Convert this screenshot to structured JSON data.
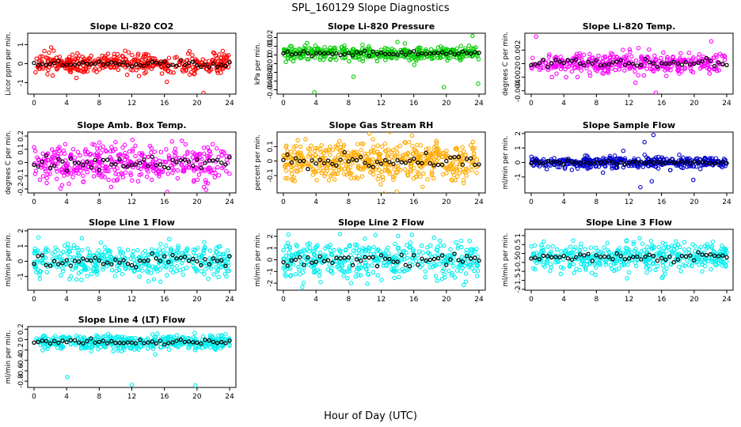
{
  "figure": {
    "title": "SPL_160129  Slope Diagnostics",
    "xlabel": "Hour of Day (UTC)"
  },
  "chart_data": [
    {
      "type": "scatter",
      "title": "Slope Li-820 CO2",
      "ylabel": "Licor ppm per min.",
      "color": "#ff0000",
      "xlim": [
        0,
        24
      ],
      "xticks": [
        0,
        4,
        8,
        12,
        16,
        20,
        24
      ],
      "ylim": [
        -1.6,
        1.6
      ],
      "yticks": [
        -1,
        0,
        1
      ],
      "series_center": 0,
      "series_spread": 0.25,
      "n_points": 420,
      "outliers": [
        {
          "x": 20.8,
          "y": -1.55
        },
        {
          "x": 2.1,
          "y": 0.85
        },
        {
          "x": 16.3,
          "y": -0.95
        },
        {
          "x": 5.2,
          "y": -0.75
        }
      ]
    },
    {
      "type": "scatter",
      "title": "Slope Li-820 Pressure",
      "ylabel": "kPa per min.",
      "color": "#00cc00",
      "xlim": [
        0,
        24
      ],
      "xticks": [
        0,
        4,
        8,
        12,
        16,
        20,
        24
      ],
      "ylim": [
        -0.045,
        0.025
      ],
      "yticks": [
        -0.04,
        -0.03,
        -0.02,
        -0.01,
        0,
        0.01,
        0.02
      ],
      "series_center": 0.002,
      "series_spread": 0.004,
      "n_points": 420,
      "outliers": [
        {
          "x": 3.8,
          "y": -0.043
        },
        {
          "x": 23.9,
          "y": -0.033
        },
        {
          "x": 19.7,
          "y": -0.037
        },
        {
          "x": 8.6,
          "y": -0.025
        },
        {
          "x": 23.2,
          "y": 0.022
        },
        {
          "x": 0.3,
          "y": -0.008
        }
      ]
    },
    {
      "type": "scatter",
      "title": "Slope Li-820 Temp.",
      "ylabel": "degrees C per min.",
      "color": "#ff00ff",
      "xlim": [
        0,
        24
      ],
      "xticks": [
        0,
        4,
        8,
        12,
        16,
        20,
        24
      ],
      "ylim": [
        -0.0045,
        0.0045
      ],
      "yticks": [
        -0.004,
        -0.002,
        0,
        0.002
      ],
      "series_center": 0,
      "series_spread": 0.0008,
      "n_points": 380,
      "outliers": [
        {
          "x": 15.3,
          "y": -0.0043
        },
        {
          "x": 0.6,
          "y": 0.004
        },
        {
          "x": 22.1,
          "y": 0.0033
        },
        {
          "x": 12.8,
          "y": -0.0028
        }
      ]
    },
    {
      "type": "scatter",
      "title": "Slope Amb. Box Temp.",
      "ylabel": "degrees C per min.",
      "color": "#ff00ff",
      "xlim": [
        0,
        24
      ],
      "xticks": [
        0,
        4,
        8,
        12,
        16,
        20,
        24
      ],
      "ylim": [
        -0.23,
        0.23
      ],
      "yticks": [
        -0.2,
        -0.1,
        0,
        0.1,
        0.2
      ],
      "series_center": 0,
      "series_spread": 0.07,
      "n_points": 420,
      "outliers": []
    },
    {
      "type": "scatter",
      "title": "Slope Gas Stream RH",
      "ylabel": "percent per min.",
      "color": "#ffaa00",
      "xlim": [
        0,
        24
      ],
      "xticks": [
        0,
        4,
        8,
        12,
        16,
        20,
        24
      ],
      "ylim": [
        -0.22,
        0.2
      ],
      "yticks": [
        -0.1,
        0,
        0.1
      ],
      "series_center": 0,
      "series_spread": 0.07,
      "n_points": 520,
      "outliers": [
        {
          "x": 13.9,
          "y": -0.21
        }
      ]
    },
    {
      "type": "scatter",
      "title": "Slope Sample Flow",
      "ylabel": "ml/min per min.",
      "color": "#0000cc",
      "xlim": [
        0,
        24
      ],
      "xticks": [
        0,
        4,
        8,
        12,
        16,
        20,
        24
      ],
      "ylim": [
        -2.1,
        2.1
      ],
      "yticks": [
        -1,
        0,
        1,
        2
      ],
      "series_center": 0,
      "series_spread": 0.18,
      "n_points": 420,
      "outliers": [
        {
          "x": 15.0,
          "y": 1.9
        },
        {
          "x": 13.9,
          "y": 1.4
        },
        {
          "x": 11.3,
          "y": 0.8
        },
        {
          "x": 13.4,
          "y": -1.7
        },
        {
          "x": 14.8,
          "y": -1.3
        },
        {
          "x": 8.8,
          "y": -0.7
        },
        {
          "x": 19.9,
          "y": -1.2
        }
      ]
    },
    {
      "type": "scatter",
      "title": "Slope Line 1 Flow",
      "ylabel": "ml/min per min.",
      "color": "#00eeee",
      "xlim": [
        0,
        24
      ],
      "xticks": [
        0,
        4,
        8,
        12,
        16,
        20,
        24
      ],
      "ylim": [
        -1.9,
        2.1
      ],
      "yticks": [
        -1,
        0,
        1,
        2
      ],
      "series_center": 0,
      "series_spread": 0.55,
      "n_points": 420,
      "outliers": []
    },
    {
      "type": "scatter",
      "title": "Slope Line 2 Flow",
      "ylabel": "ml/min per min.",
      "color": "#00eeee",
      "xlim": [
        0,
        24
      ],
      "xticks": [
        0,
        4,
        8,
        12,
        16,
        20,
        24
      ],
      "ylim": [
        -2.6,
        2.6
      ],
      "yticks": [
        -2,
        -1,
        0,
        1,
        2
      ],
      "series_center": 0,
      "series_spread": 0.8,
      "n_points": 420,
      "outliers": []
    },
    {
      "type": "scatter",
      "title": "Slope Line 3 Flow",
      "ylabel": "ml/min per min.",
      "color": "#00eeee",
      "xlim": [
        0,
        24
      ],
      "xticks": [
        0,
        4,
        8,
        12,
        16,
        20,
        24
      ],
      "ylim": [
        -2.05,
        1.35
      ],
      "yticks": [
        -2.0,
        -1.5,
        -1.0,
        -0.5,
        0.0,
        0.5,
        1.0
      ],
      "series_center": -0.2,
      "series_spread": 0.4,
      "n_points": 420,
      "outliers": []
    },
    {
      "type": "scatter",
      "title": "Slope Line 4 (LT) Flow",
      "ylabel": "ml/min per min.",
      "color": "#00eeee",
      "xlim": [
        0,
        24
      ],
      "xticks": [
        0,
        4,
        8,
        12,
        16,
        20,
        24
      ],
      "ylim": [
        -0.92,
        0.25
      ],
      "yticks": [
        -0.8,
        -0.6,
        -0.4,
        -0.2,
        0,
        0.2
      ],
      "series_center": -0.05,
      "series_spread": 0.07,
      "n_points": 420,
      "outliers": [
        {
          "x": 4.1,
          "y": -0.72
        },
        {
          "x": 12.0,
          "y": -0.87
        },
        {
          "x": 19.8,
          "y": -0.88
        }
      ]
    }
  ]
}
